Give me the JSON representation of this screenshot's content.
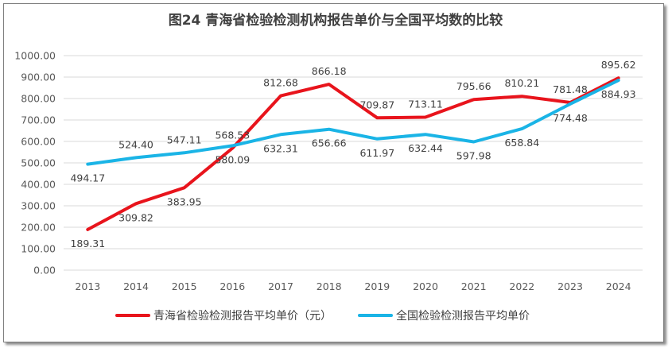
{
  "chart_data": {
    "type": "line",
    "title": "图24 青海省检验检测机构报告单价与全国平均数的比较",
    "xlabel": "",
    "ylabel": "",
    "ylim": [
      0,
      1000
    ],
    "yticks": [
      "0.00",
      "100.00",
      "200.00",
      "300.00",
      "400.00",
      "500.00",
      "600.00",
      "700.00",
      "800.00",
      "900.00",
      "1000.00"
    ],
    "categories": [
      "2013",
      "2014",
      "2015",
      "2016",
      "2017",
      "2018",
      "2019",
      "2020",
      "2021",
      "2022",
      "2023",
      "2024"
    ],
    "legend_position": "bottom",
    "series": [
      {
        "name": "青海省检验检测报告平均单价（元）",
        "color": "#e8141c",
        "values": [
          189.31,
          309.82,
          383.95,
          568.53,
          812.68,
          866.18,
          709.87,
          713.11,
          795.66,
          810.21,
          781.48,
          895.62
        ],
        "labels": [
          "189.31",
          "309.82",
          "383.95",
          "568.53",
          "812.68",
          "866.18",
          "709.87",
          "713.11",
          "795.66",
          "810.21",
          "781.48",
          "895.62"
        ],
        "label_side": [
          "below",
          "below",
          "below",
          "above",
          "above",
          "above",
          "above",
          "above",
          "above",
          "above",
          "above",
          "above"
        ]
      },
      {
        "name": "全国检验检测报告平均单价",
        "color": "#1ab4e6",
        "values": [
          494.17,
          524.4,
          547.11,
          580.09,
          632.31,
          656.66,
          611.97,
          632.44,
          597.98,
          658.84,
          774.48,
          884.93
        ],
        "labels": [
          "494.17",
          "524.40",
          "547.11",
          "580.09",
          "632.31",
          "656.66",
          "611.97",
          "632.44",
          "597.98",
          "658.84",
          "774.48",
          "884.93"
        ],
        "label_side": [
          "below",
          "above",
          "above",
          "below",
          "below",
          "below",
          "below",
          "below",
          "below",
          "below",
          "below",
          "below"
        ]
      }
    ]
  }
}
